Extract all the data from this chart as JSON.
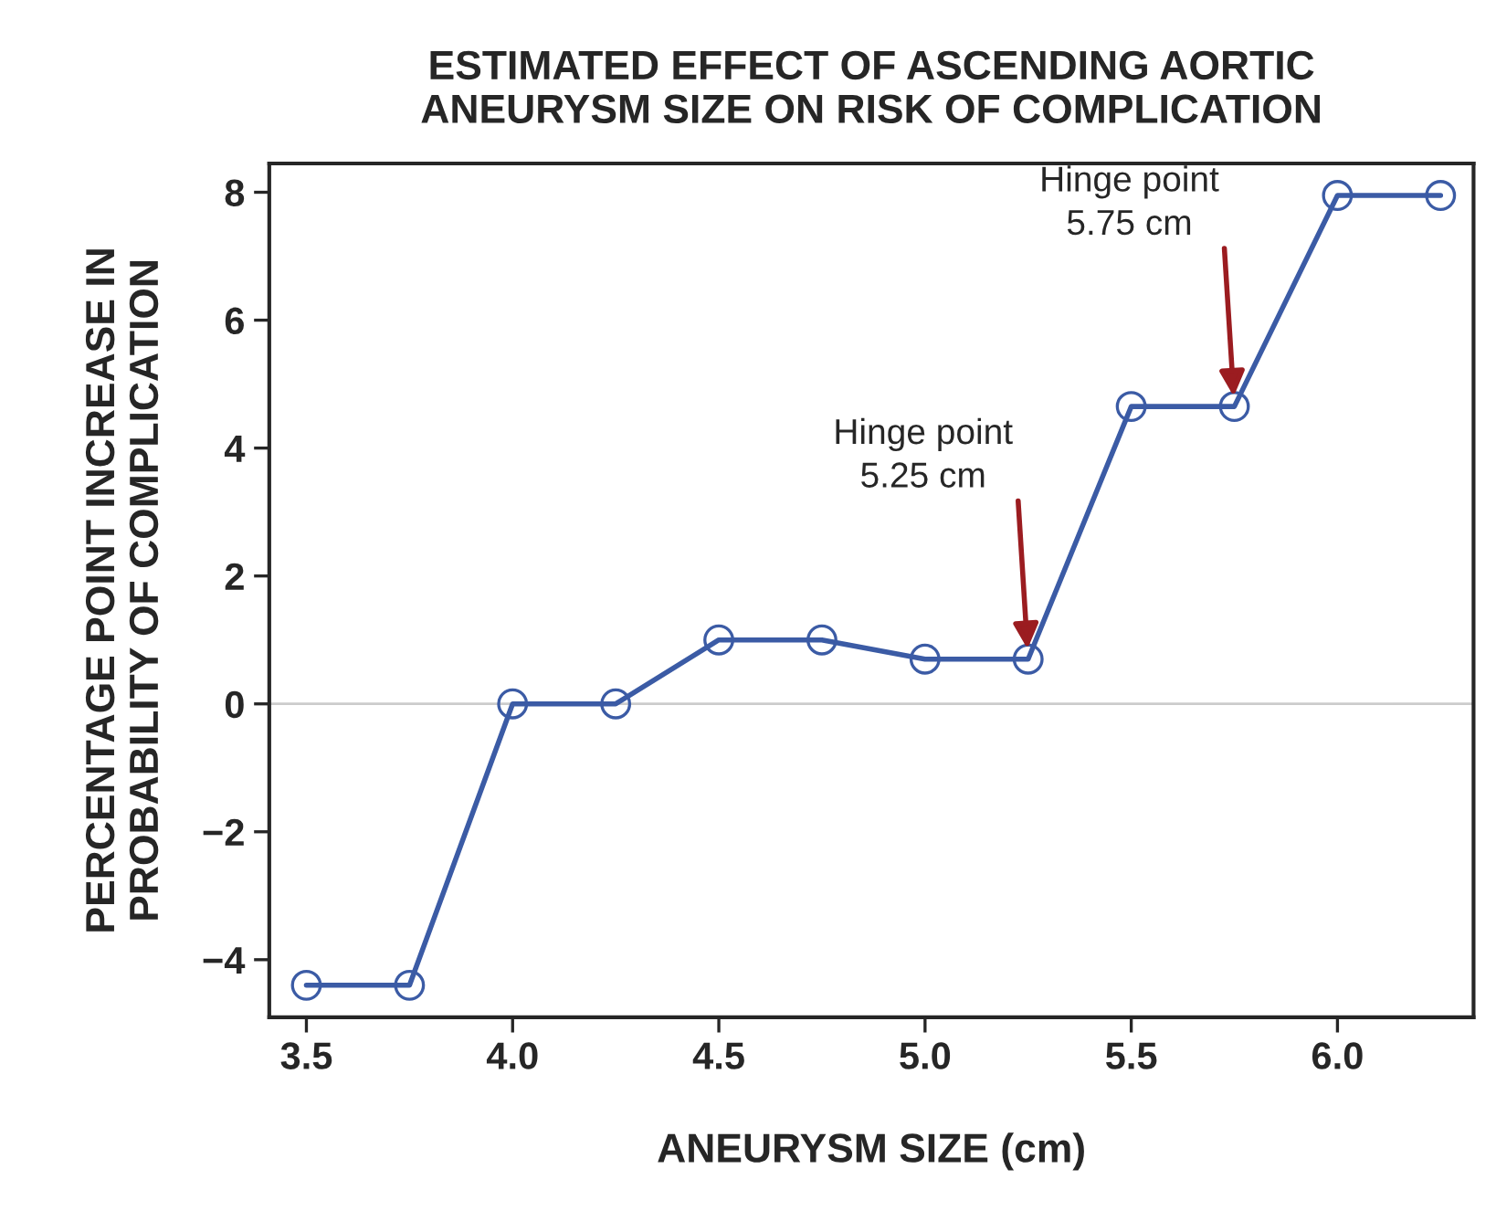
{
  "chart_data": {
    "type": "line",
    "title": "ESTIMATED EFFECT OF ASCENDING AORTIC\nANEURYSM SIZE ON RISK OF COMPLICATION",
    "xlabel": "ANEURYSM SIZE (cm)",
    "ylabel": "PERCENTAGE POINT INCREASE IN\nPROBABILITY OF COMPLICATION",
    "x": [
      3.5,
      3.75,
      4.0,
      4.25,
      4.5,
      4.75,
      5.0,
      5.25,
      5.5,
      5.75,
      6.0,
      6.25
    ],
    "series": [
      {
        "color": "#3b5ba5",
        "values": [
          -4.4,
          -4.4,
          0,
          0,
          1.0,
          1.0,
          0.7,
          0.7,
          4.65,
          4.65,
          7.95,
          7.95
        ]
      }
    ],
    "marker": "circle",
    "line_style": "solid",
    "grid": false,
    "legend": false,
    "xlim": [
      3.41,
      6.33
    ],
    "xticks": [
      {
        "value": 3.5,
        "label": "3.5"
      },
      {
        "value": 4.0,
        "label": "4.0"
      },
      {
        "value": 4.5,
        "label": "4.5"
      },
      {
        "value": 5.0,
        "label": "5.0"
      },
      {
        "value": 5.5,
        "label": "5.5"
      },
      {
        "value": 6.0,
        "label": "6.0"
      }
    ],
    "ylim": [
      -4.9,
      8.45
    ],
    "yticks": [
      {
        "value": -4,
        "label": "−4"
      },
      {
        "value": -2,
        "label": "−2"
      },
      0,
      2,
      4,
      6,
      8
    ],
    "ref_lines": [
      {
        "axis": "y",
        "value": 0,
        "color": "#cccccc"
      }
    ],
    "annotations": [
      {
        "text": "Hinge point\n5.25 cm",
        "x": 5.25,
        "y": 0.7
      },
      {
        "text": "Hinge point\n5.75 cm",
        "x": 5.75,
        "y": 4.65
      }
    ]
  }
}
